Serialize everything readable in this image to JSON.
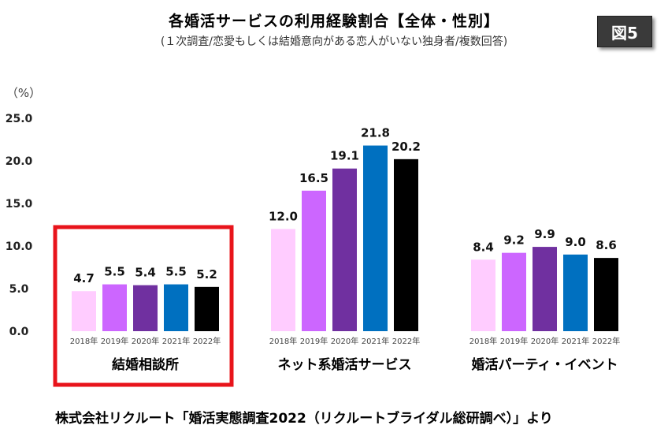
{
  "header": {
    "title": "各婚活サービスの利用経験割合【全体・性別】",
    "subtitle": "(１次調査/恋愛もしくは結婚意向がある恋人がいない独身者/複数回答)",
    "badge": "図5"
  },
  "source_note": "株式会社リクルート「婚活実態調査2022（リクルートブライダル総研調べ）」より",
  "chart_data": {
    "type": "bar",
    "title": "各婚活サービスの利用経験割合【全体・性別】",
    "unit_label": "（%）",
    "ylim": [
      0,
      25
    ],
    "yticks": [
      "0.0",
      "5.0",
      "10.0",
      "15.0",
      "20.0",
      "25.0"
    ],
    "highlight_group": 0,
    "highlight_color": "#e8141b",
    "groups": [
      {
        "name": "結婚相談所",
        "bars": [
          {
            "year": "2018年",
            "value": 4.7,
            "label": "4.7",
            "color": "#ffccff"
          },
          {
            "year": "2019年",
            "value": 5.5,
            "label": "5.5",
            "color": "#cc66ff"
          },
          {
            "year": "2020年",
            "value": 5.4,
            "label": "5.4",
            "color": "#7030a0"
          },
          {
            "year": "2021年",
            "value": 5.5,
            "label": "5.5",
            "color": "#0070c0"
          },
          {
            "year": "2022年",
            "value": 5.2,
            "label": "5.2",
            "color": "#000000"
          }
        ]
      },
      {
        "name": "ネット系婚活サービス",
        "bars": [
          {
            "year": "2018年",
            "value": 12.0,
            "label": "12.0",
            "color": "#ffccff"
          },
          {
            "year": "2019年",
            "value": 16.5,
            "label": "16.5",
            "color": "#cc66ff"
          },
          {
            "year": "2020年",
            "value": 19.1,
            "label": "19.1",
            "color": "#7030a0"
          },
          {
            "year": "2021年",
            "value": 21.8,
            "label": "21.8",
            "color": "#0070c0"
          },
          {
            "year": "2022年",
            "value": 20.2,
            "label": "20.2",
            "color": "#000000"
          }
        ]
      },
      {
        "name": "婚活パーティ・イベント",
        "bars": [
          {
            "year": "2018年",
            "value": 8.4,
            "label": "8.4",
            "color": "#ffccff"
          },
          {
            "year": "2019年",
            "value": 9.2,
            "label": "9.2",
            "color": "#cc66ff"
          },
          {
            "year": "2020年",
            "value": 9.9,
            "label": "9.9",
            "color": "#7030a0"
          },
          {
            "year": "2021年",
            "value": 9.0,
            "label": "9.0",
            "color": "#0070c0"
          },
          {
            "year": "2022年",
            "value": 8.6,
            "label": "8.6",
            "color": "#000000"
          }
        ]
      }
    ]
  }
}
